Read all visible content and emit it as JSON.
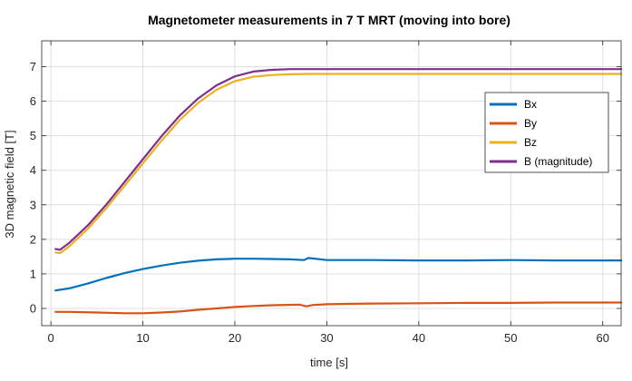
{
  "chart_data": {
    "type": "line",
    "title": "Magnetometer measurements in 7 T MRT (moving into bore)",
    "xlabel": "time [s]",
    "ylabel": "3D magnetic field [T]",
    "xlim": [
      -1,
      62
    ],
    "ylim": [
      -0.5,
      7.75
    ],
    "xticks": [
      0,
      10,
      20,
      30,
      40,
      50,
      60
    ],
    "yticks": [
      0,
      1,
      2,
      3,
      4,
      5,
      6,
      7
    ],
    "grid": true,
    "legend_position": "right",
    "series": [
      {
        "name": "Bx",
        "color": "#0072BD",
        "x": [
          0.5,
          2,
          4,
          6,
          8,
          10,
          12,
          14,
          16,
          18,
          20,
          22,
          24,
          26,
          27.5,
          28,
          30,
          35,
          40,
          45,
          50,
          55,
          60,
          62
        ],
        "y": [
          0.52,
          0.58,
          0.72,
          0.88,
          1.02,
          1.14,
          1.24,
          1.32,
          1.38,
          1.42,
          1.44,
          1.44,
          1.43,
          1.42,
          1.4,
          1.46,
          1.4,
          1.4,
          1.39,
          1.39,
          1.4,
          1.39,
          1.39,
          1.39
        ]
      },
      {
        "name": "By",
        "color": "#D95319",
        "x": [
          0.5,
          2,
          5,
          8,
          10,
          12,
          14,
          16,
          18,
          20,
          22,
          24,
          27,
          27.8,
          28.5,
          30,
          32,
          35,
          40,
          45,
          50,
          55,
          60,
          62
        ],
        "y": [
          -0.1,
          -0.1,
          -0.12,
          -0.14,
          -0.14,
          -0.12,
          -0.09,
          -0.04,
          0.0,
          0.04,
          0.07,
          0.09,
          0.11,
          0.06,
          0.1,
          0.12,
          0.13,
          0.14,
          0.15,
          0.16,
          0.16,
          0.17,
          0.17,
          0.17
        ]
      },
      {
        "name": "Bz",
        "color": "#EDB120",
        "x": [
          0.5,
          1,
          2,
          4,
          6,
          8,
          10,
          12,
          14,
          16,
          18,
          20,
          22,
          24,
          26,
          28,
          30,
          35,
          40,
          45,
          50,
          55,
          60,
          62
        ],
        "y": [
          1.62,
          1.6,
          1.8,
          2.3,
          2.9,
          3.55,
          4.2,
          4.85,
          5.45,
          5.95,
          6.33,
          6.58,
          6.71,
          6.76,
          6.78,
          6.79,
          6.79,
          6.79,
          6.79,
          6.79,
          6.79,
          6.79,
          6.79,
          6.79
        ]
      },
      {
        "name": "B (magnitude)",
        "color": "#7E2F8E",
        "x": [
          0.5,
          1,
          2,
          4,
          6,
          8,
          10,
          12,
          14,
          16,
          18,
          20,
          22,
          24,
          26,
          28,
          30,
          35,
          40,
          45,
          50,
          55,
          60,
          62
        ],
        "y": [
          1.72,
          1.7,
          1.9,
          2.4,
          3.0,
          3.66,
          4.32,
          4.98,
          5.58,
          6.08,
          6.46,
          6.72,
          6.86,
          6.91,
          6.93,
          6.93,
          6.93,
          6.93,
          6.93,
          6.93,
          6.93,
          6.93,
          6.93,
          6.93
        ]
      }
    ]
  }
}
